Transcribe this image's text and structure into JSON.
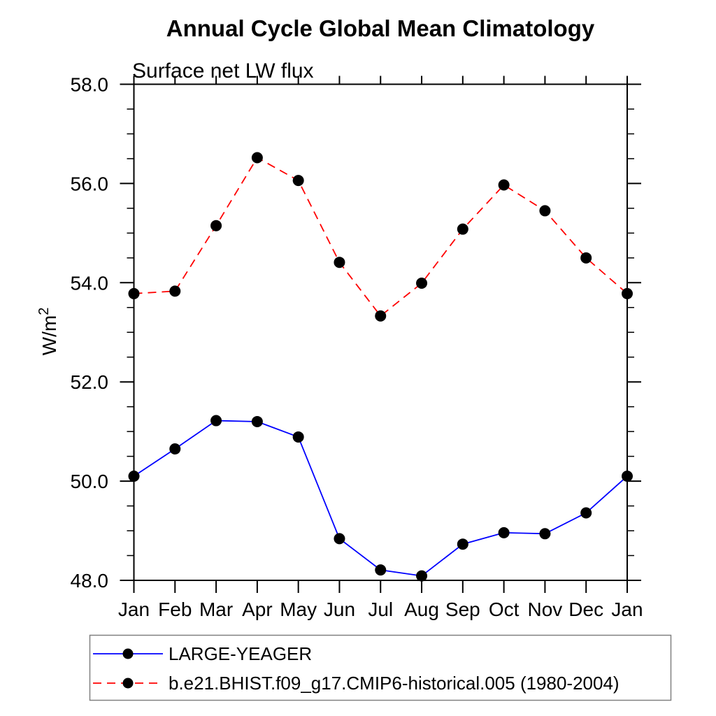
{
  "chart_data": {
    "type": "line",
    "title": "Annual Cycle Global Mean Climatology",
    "subtitle": "Surface net LW flux",
    "ylabel": "W/m2",
    "ylabel_base": "W/m",
    "ylabel_sup": "2",
    "categories": [
      "Jan",
      "Feb",
      "Mar",
      "Apr",
      "May",
      "Jun",
      "Jul",
      "Aug",
      "Sep",
      "Oct",
      "Nov",
      "Dec",
      "Jan"
    ],
    "ylim": [
      48.0,
      58.0
    ],
    "ytick_major_step": 2.0,
    "ytick_minor_step": 0.5,
    "ytick_labels": [
      "48.0",
      "50.0",
      "52.0",
      "54.0",
      "56.0",
      "58.0"
    ],
    "grid": false,
    "legend_position": "bottom",
    "axis_color": "#000000",
    "legend_border_color": "#808080",
    "marker_color": "#000000",
    "series": [
      {
        "name": "LARGE-YEAGER",
        "color": "#0000ff",
        "line_style": "solid",
        "marker": "filled-circle",
        "values": [
          50.1,
          50.65,
          51.22,
          51.2,
          50.89,
          48.84,
          48.21,
          48.09,
          48.73,
          48.96,
          48.94,
          49.36,
          50.1
        ]
      },
      {
        "name": "b.e21.BHIST.f09_g17.CMIP6-historical.005 (1980-2004)",
        "color": "#ff0000",
        "line_style": "dashed",
        "marker": "filled-circle",
        "values": [
          53.78,
          53.83,
          55.15,
          56.52,
          56.06,
          54.41,
          53.33,
          53.99,
          55.08,
          55.97,
          55.45,
          54.5,
          53.78
        ]
      }
    ]
  }
}
